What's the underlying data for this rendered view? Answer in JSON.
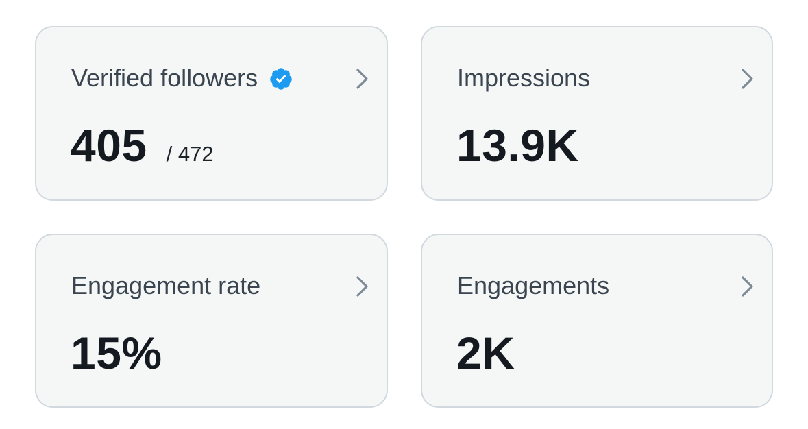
{
  "cards": [
    {
      "title": "Verified followers",
      "value": "405",
      "sub_value": "/ 472",
      "icons": [
        "verified-badge-icon",
        "chevron-right-icon"
      ]
    },
    {
      "title": "Impressions",
      "value": "13.9K",
      "icons": [
        "chevron-right-icon"
      ]
    },
    {
      "title": "Engagement rate",
      "value": "15%",
      "icons": [
        "chevron-right-icon"
      ]
    },
    {
      "title": "Engagements",
      "value": "2K",
      "icons": [
        "chevron-right-icon"
      ]
    }
  ],
  "colors": {
    "card_background": "#f5f7f7",
    "card_border": "#d2d9de",
    "title_text": "#3a4550",
    "value_text": "#141a20",
    "chevron": "#7d8a96",
    "verified_badge": "#1d9bf0"
  }
}
